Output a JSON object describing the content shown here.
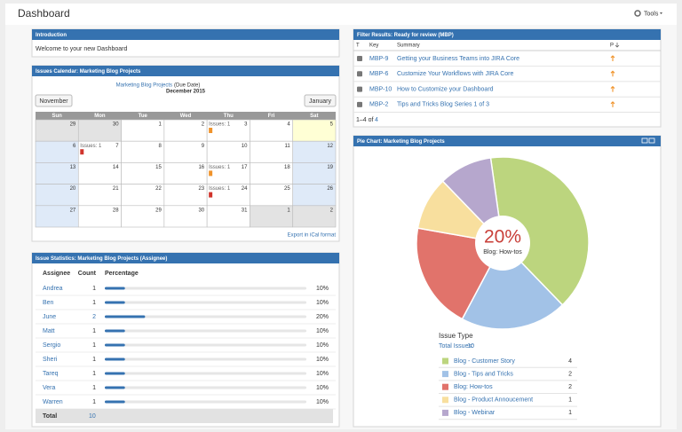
{
  "header": {
    "title": "Dashboard",
    "tools": "Tools"
  },
  "introduction": {
    "title": "Introduction",
    "text": "Welcome to your new Dashboard"
  },
  "calendar": {
    "title": "Issues Calendar: Marketing Blog Projects",
    "project": "Marketing Blog Projects",
    "field": "(Due Date)",
    "month": "December 2015",
    "prev": "November",
    "next": "January",
    "weekdays": [
      "Sun",
      "Mon",
      "Tue",
      "Wed",
      "Thu",
      "Fri",
      "Sat"
    ],
    "weeks": [
      [
        {
          "day": 29
        },
        {
          "day": 30
        },
        {
          "day": 1
        },
        {
          "day": 2
        },
        {
          "day": 3,
          "issues": "Issues: 1",
          "marker": "#f0932b"
        },
        {
          "day": 4
        },
        {
          "day": 5,
          "today": true
        }
      ],
      [
        {
          "day": 6
        },
        {
          "day": 7,
          "issues": "Issues: 1",
          "marker": "#d0342c"
        },
        {
          "day": 8
        },
        {
          "day": 9
        },
        {
          "day": 10
        },
        {
          "day": 11
        },
        {
          "day": 12
        }
      ],
      [
        {
          "day": 13
        },
        {
          "day": 14
        },
        {
          "day": 15
        },
        {
          "day": 16
        },
        {
          "day": 17,
          "issues": "Issues: 1",
          "marker": "#f0932b"
        },
        {
          "day": 18
        },
        {
          "day": 19
        }
      ],
      [
        {
          "day": 20
        },
        {
          "day": 21
        },
        {
          "day": 22
        },
        {
          "day": 23
        },
        {
          "day": 24,
          "issues": "Issues: 1",
          "marker": "#d0342c"
        },
        {
          "day": 25
        },
        {
          "day": 26
        }
      ],
      [
        {
          "day": 27
        },
        {
          "day": 28
        },
        {
          "day": 29
        },
        {
          "day": 30
        },
        {
          "day": 31
        },
        {
          "day": 1
        },
        {
          "day": 2
        }
      ]
    ],
    "export": "Export in iCal format"
  },
  "statistics": {
    "title": "Issue Statistics: Marketing Blog Projects (Assignee)",
    "columns": [
      "Assignee",
      "Count",
      "Percentage"
    ],
    "rows": [
      {
        "assignee": "Andrea",
        "count": 1,
        "percentage": 10,
        "percentage_label": "10%"
      },
      {
        "assignee": "Ben",
        "count": 1,
        "percentage": 10,
        "percentage_label": "10%"
      },
      {
        "assignee": "June",
        "count": 2,
        "percentage": 20,
        "percentage_label": "20%"
      },
      {
        "assignee": "Matt",
        "count": 1,
        "percentage": 10,
        "percentage_label": "10%"
      },
      {
        "assignee": "Sergio",
        "count": 1,
        "percentage": 10,
        "percentage_label": "10%"
      },
      {
        "assignee": "Sheri",
        "count": 1,
        "percentage": 10,
        "percentage_label": "10%"
      },
      {
        "assignee": "Tareq",
        "count": 1,
        "percentage": 10,
        "percentage_label": "10%"
      },
      {
        "assignee": "Vera",
        "count": 1,
        "percentage": 10,
        "percentage_label": "10%"
      },
      {
        "assignee": "Warren",
        "count": 1,
        "percentage": 10,
        "percentage_label": "10%"
      }
    ],
    "total_label": "Total",
    "total": 10
  },
  "filter": {
    "title": "Filter Results: Ready for review (MBP)",
    "columns": [
      "T",
      "Key",
      "Summary",
      "P"
    ],
    "rows": [
      {
        "key": "MBP-9",
        "summary": "Getting your Business Teams into JIRA Core"
      },
      {
        "key": "MBP-6",
        "summary": "Customize Your Workflows with JIRA Core"
      },
      {
        "key": "MBP-10",
        "summary": "How to Customize your Dashboard"
      },
      {
        "key": "MBP-2",
        "summary": "Tips and Tricks Blog Series 1 of 3"
      }
    ],
    "range": "1–4 of",
    "total": 4
  },
  "pie_chart": {
    "type": "pie",
    "title": "Pie Chart: Marketing Blog Projects",
    "center_value": "20%",
    "center_label": "Blog: How-tos",
    "legend_title": "Issue Type",
    "total_label": "Total Issues:",
    "total": 10,
    "series": [
      {
        "name": "Blog - Customer Story",
        "value": 4,
        "color": "#bcd57e"
      },
      {
        "name": "Blog - Tips and Tricks",
        "value": 2,
        "color": "#a2c2e7"
      },
      {
        "name": "Blog: How-tos",
        "value": 2,
        "color": "#e1736b"
      },
      {
        "name": "Blog - Product Annoucement",
        "value": 1,
        "color": "#f8df9e"
      },
      {
        "name": "Blog - Webinar",
        "value": 1,
        "color": "#b6a7cd"
      }
    ]
  }
}
